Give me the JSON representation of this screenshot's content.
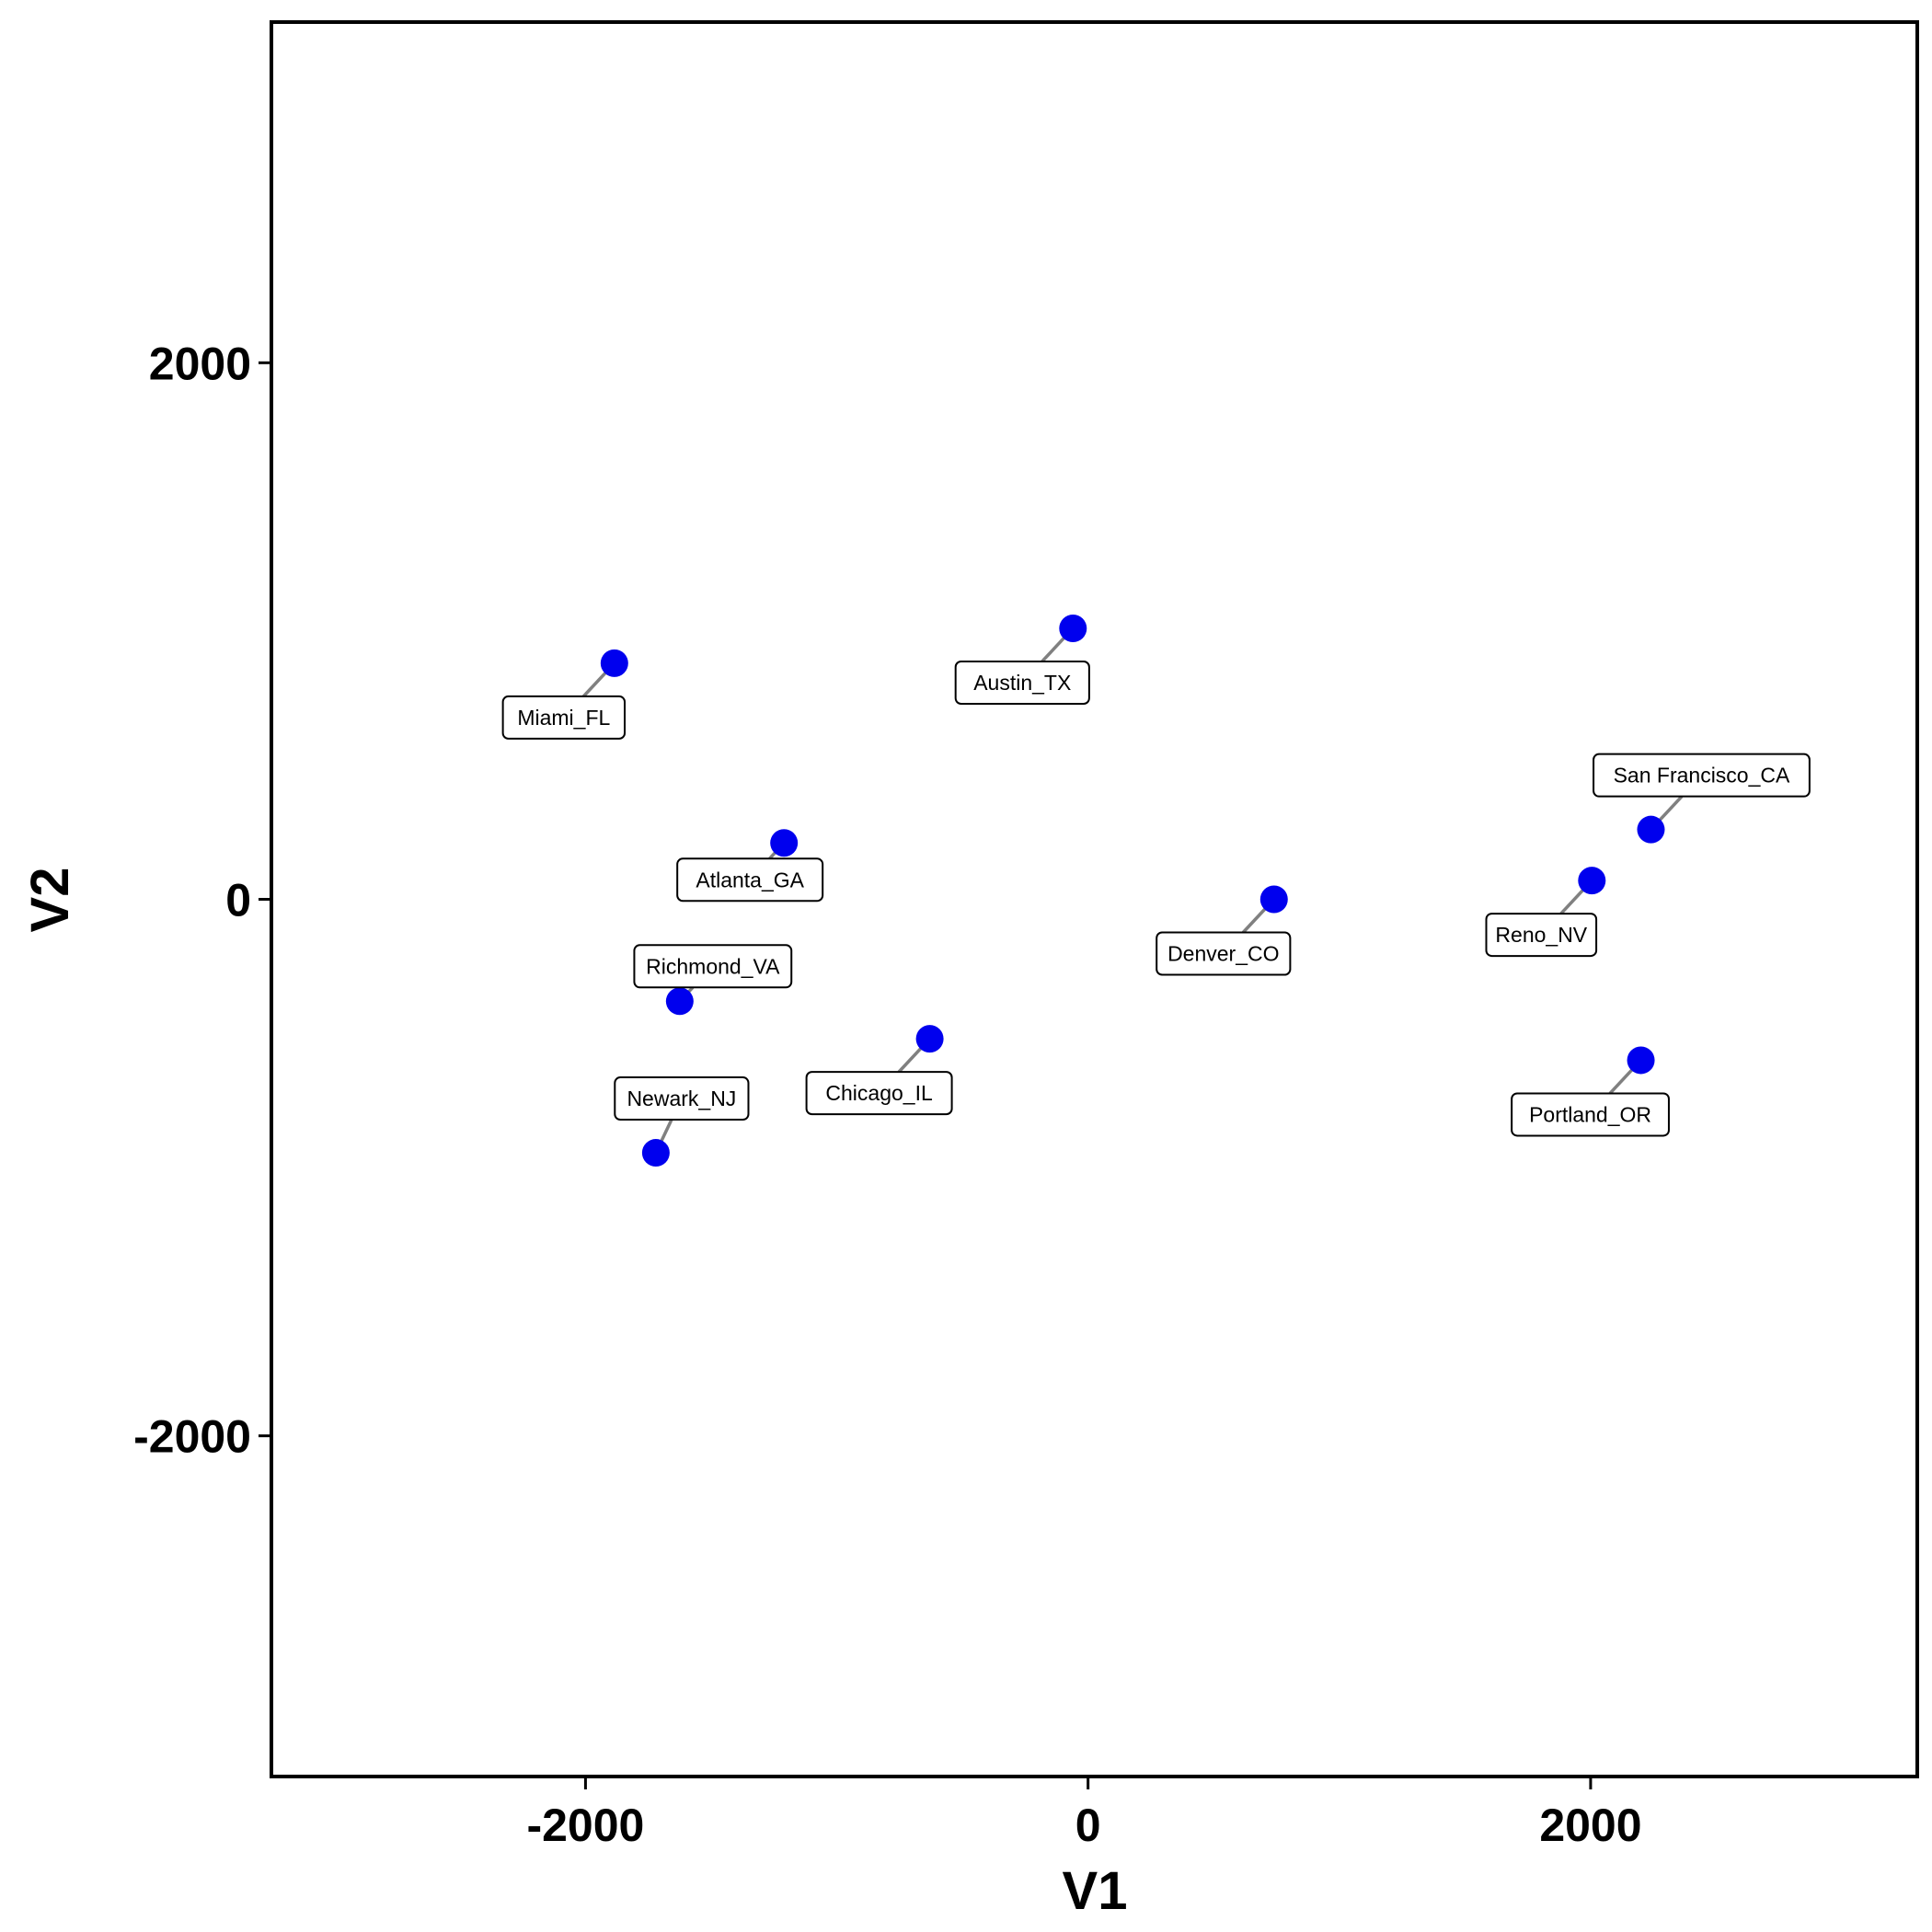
{
  "chart_data": {
    "type": "scatter",
    "title": "",
    "xlabel": "V1",
    "ylabel": "V2",
    "xlim": [
      -3250,
      3300
    ],
    "ylim": [
      -3270,
      3270
    ],
    "xticks": [
      -2000,
      0,
      2000
    ],
    "yticks": [
      2000,
      0,
      -2000
    ],
    "xtick_labels": [
      "-2000",
      "0",
      "2000"
    ],
    "ytick_labels": [
      "2000",
      "0",
      "-2000"
    ],
    "grid": false,
    "legend": "none",
    "point_color": "#0000ee",
    "points": [
      {
        "label": "Miami_FL",
        "x": -1885,
        "y": 880
      },
      {
        "label": "Austin_TX",
        "x": -60,
        "y": 1010
      },
      {
        "label": "Atlanta_GA",
        "x": -1210,
        "y": 210
      },
      {
        "label": "Richmond_VA",
        "x": -1625,
        "y": -380
      },
      {
        "label": "Newark_NJ",
        "x": -1720,
        "y": -945
      },
      {
        "label": "Chicago_IL",
        "x": -630,
        "y": -520
      },
      {
        "label": "Denver_CO",
        "x": 740,
        "y": 0
      },
      {
        "label": "San Francisco_CA",
        "x": 2240,
        "y": 260
      },
      {
        "label": "Reno_NV",
        "x": 2005,
        "y": 70
      },
      {
        "label": "Portland_OR",
        "x": 2200,
        "y": -600
      }
    ]
  }
}
